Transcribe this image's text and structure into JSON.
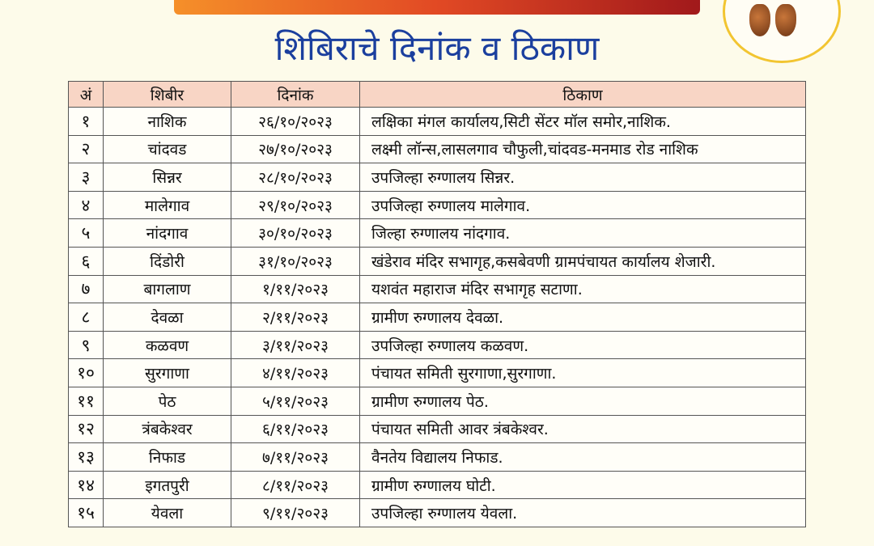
{
  "subtitle": "शिबिराचे दिनांक व ठिकाण",
  "colors": {
    "subtitle": "#1b3f9e",
    "header_bg": "#f8d5c5",
    "background": "#fdfbea",
    "banner": "#e0401a"
  },
  "table": {
    "headers": [
      "अं",
      "शिबीर",
      "दिनांक",
      "ठिकाण"
    ],
    "rows": [
      [
        "१",
        "नाशिक",
        "२६/१०/२०२३",
        "लक्षिका मंगल कार्यालय,सिटी सेंटर मॉल समोर,नाशिक."
      ],
      [
        "२",
        "चांदवड",
        "२७/१०/२०२३",
        "लक्ष्मी लॉन्स,लासलगाव चौफुली,चांदवड-मनमाड रोड नाशिक"
      ],
      [
        "३",
        "सिन्नर",
        "२८/१०/२०२३",
        "उपजिल्हा रुग्णालय सिन्नर."
      ],
      [
        "४",
        "मालेगाव",
        "२९/१०/२०२३",
        "उपजिल्हा रुग्णालय मालेगाव."
      ],
      [
        "५",
        "नांदगाव",
        "३०/१०/२०२३",
        "जिल्हा रुग्णालय नांदगाव."
      ],
      [
        "६",
        "दिंडोरी",
        "३१/१०/२०२३",
        "खंडेराव मंदिर सभागृह,कसबेवणी ग्रामपंचायत कार्यालय शेजारी."
      ],
      [
        "७",
        "बागलाण",
        "१/११/२०२३",
        "यशवंत महाराज मंदिर सभागृह सटाणा."
      ],
      [
        "८",
        "देवळा",
        "२/११/२०२३",
        "ग्रामीण रुग्णालय देवळा."
      ],
      [
        "९",
        "कळवण",
        "३/११/२०२३",
        "उपजिल्हा रुग्णालय कळवण."
      ],
      [
        "१०",
        "सुरगाणा",
        "४/११/२०२३",
        "पंचायत समिती सुरगाणा,सुरगाणा."
      ],
      [
        "११",
        "पेठ",
        "५/११/२०२३",
        "ग्रामीण रुग्णालय पेठ."
      ],
      [
        "१२",
        "त्रंबकेश्वर",
        "६/११/२०२३",
        "पंचायत समिती आवर त्रंबकेश्वर."
      ],
      [
        "१३",
        "निफाड",
        "७/११/२०२३",
        "वैनतेय विद्यालय निफाड."
      ],
      [
        "१४",
        "इगतपुरी",
        "८/११/२०२३",
        "ग्रामीण रुग्णालय घोटी."
      ],
      [
        "१५",
        "येवला",
        "९/११/२०२३",
        "उपजिल्हा रुग्णालय येवला."
      ]
    ]
  }
}
